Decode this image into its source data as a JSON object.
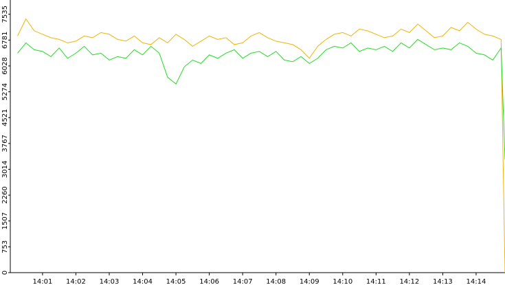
{
  "chart_data": {
    "type": "line",
    "x": [
      "14:00:15",
      "14:00:30",
      "14:00:45",
      "14:01:00",
      "14:01:15",
      "14:01:30",
      "14:01:45",
      "14:02:00",
      "14:02:15",
      "14:02:30",
      "14:02:45",
      "14:03:00",
      "14:03:15",
      "14:03:30",
      "14:03:45",
      "14:04:00",
      "14:04:15",
      "14:04:30",
      "14:04:45",
      "14:05:00",
      "14:05:15",
      "14:05:30",
      "14:05:45",
      "14:06:00",
      "14:06:15",
      "14:06:30",
      "14:06:45",
      "14:07:00",
      "14:07:15",
      "14:07:30",
      "14:07:45",
      "14:08:00",
      "14:08:15",
      "14:08:30",
      "14:08:45",
      "14:09:00",
      "14:09:15",
      "14:09:30",
      "14:09:45",
      "14:10:00",
      "14:10:15",
      "14:10:30",
      "14:10:45",
      "14:11:00",
      "14:11:15",
      "14:11:30",
      "14:11:45",
      "14:12:00",
      "14:12:15",
      "14:12:30",
      "14:12:45",
      "14:13:00",
      "14:13:15",
      "14:13:30",
      "14:13:45",
      "14:14:00",
      "14:14:15",
      "14:14:30",
      "14:14:45",
      "14:14:52"
    ],
    "series": [
      {
        "color": "#f0b400",
        "values": [
          6900,
          7400,
          7050,
          6950,
          6850,
          6800,
          6700,
          6750,
          6900,
          6850,
          7000,
          6950,
          6800,
          6750,
          6900,
          6700,
          6650,
          6850,
          6700,
          6950,
          6800,
          6600,
          6750,
          6900,
          6800,
          6850,
          6650,
          6700,
          6900,
          7000,
          6850,
          6750,
          6700,
          6650,
          6500,
          6250,
          6600,
          6800,
          6950,
          7000,
          6900,
          7100,
          7050,
          6950,
          6850,
          6900,
          7100,
          7000,
          7250,
          7050,
          6850,
          6900,
          7150,
          7050,
          7300,
          7100,
          6950,
          6900,
          6800,
          0
        ]
      },
      {
        "color": "#22dd22",
        "values": [
          6400,
          6700,
          6500,
          6450,
          6300,
          6550,
          6250,
          6400,
          6600,
          6350,
          6400,
          6200,
          6300,
          6250,
          6500,
          6350,
          6600,
          6400,
          5700,
          5500,
          6000,
          6200,
          6100,
          6350,
          6250,
          6400,
          6500,
          6250,
          6400,
          6450,
          6300,
          6450,
          6200,
          6150,
          6300,
          6100,
          6250,
          6500,
          6600,
          6550,
          6700,
          6450,
          6550,
          6500,
          6600,
          6450,
          6700,
          6550,
          6800,
          6650,
          6500,
          6550,
          6500,
          6700,
          6600,
          6400,
          6350,
          6200,
          6550,
          3300
        ]
      }
    ],
    "xlim": [
      "14:00:02",
      "14:14:52"
    ],
    "xticks": [
      "14:01",
      "14:02",
      "14:03",
      "14:04",
      "14:05",
      "14:06",
      "14:07",
      "14:08",
      "14:09",
      "14:10",
      "14:11",
      "14:12",
      "14:13",
      "14:14"
    ],
    "ylim": [
      0,
      7950
    ],
    "yticks": [
      0,
      753,
      1507,
      2260,
      3014,
      3767,
      4521,
      5274,
      6028,
      6781,
      7535
    ]
  }
}
